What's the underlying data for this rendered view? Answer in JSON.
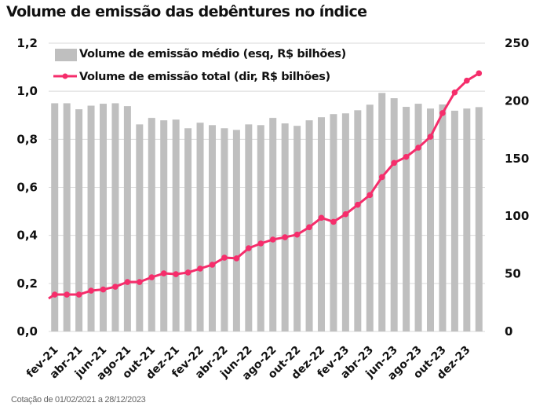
{
  "title": "Volume de emissão das debêntures no índice",
  "footnote": "Cotação de 01/02/2021 a 28/12/2023",
  "colors": {
    "bar": "#BFBFBF",
    "line": "#F52D6B",
    "grid": "#D9D9D9"
  },
  "legend": [
    {
      "label": "Volume de emissão médio (esq, R$ bilhões)",
      "type": "bar"
    },
    {
      "label": "Volume de emissão total (dir, R$ bilhões)",
      "type": "line"
    }
  ],
  "chart_data": {
    "type": "bar+line",
    "title": "Volume de emissão das debêntures no índice",
    "categories": [
      "fev-21",
      "mar-21",
      "abr-21",
      "mai-21",
      "jun-21",
      "jul-21",
      "ago-21",
      "set-21",
      "out-21",
      "nov-21",
      "dez-21",
      "jan-22",
      "fev-22",
      "mar-22",
      "abr-22",
      "mai-22",
      "jun-22",
      "jul-22",
      "ago-22",
      "set-22",
      "out-22",
      "nov-22",
      "dez-22",
      "jan-23",
      "fev-23",
      "mar-23",
      "abr-23",
      "mai-23",
      "jun-23",
      "jul-23",
      "ago-23",
      "set-23",
      "out-23",
      "nov-23",
      "dez-23",
      "jan-24"
    ],
    "x_tick_labels": [
      "fev-21",
      "abr-21",
      "jun-21",
      "ago-21",
      "out-21",
      "dez-21",
      "fev-22",
      "abr-22",
      "jun-22",
      "ago-22",
      "out-22",
      "dez-22",
      "fev-23",
      "abr-23",
      "jun-23",
      "ago-23",
      "out-23",
      "dez-23"
    ],
    "series": [
      {
        "name": "Volume de emissão médio (esq, R$ bilhões)",
        "type": "bar",
        "axis": "left",
        "values": [
          0.95,
          0.95,
          0.925,
          0.94,
          0.948,
          0.95,
          0.938,
          0.862,
          0.889,
          0.879,
          0.882,
          0.846,
          0.869,
          0.859,
          0.846,
          0.839,
          0.862,
          0.859,
          0.889,
          0.866,
          0.856,
          0.879,
          0.892,
          0.905,
          0.908,
          0.921,
          0.944,
          0.993,
          0.971,
          0.935,
          0.948,
          0.928,
          0.945,
          0.919,
          0.928,
          0.934
        ]
      },
      {
        "name": "Volume de emissão total (dir, R$ bilhões)",
        "type": "line",
        "axis": "right",
        "start_value": 28.6,
        "values": [
          32,
          32,
          32,
          35.4,
          36.4,
          38.8,
          42.9,
          42.9,
          47,
          50.4,
          49.7,
          51.1,
          54.5,
          57.9,
          64,
          63.4,
          72.2,
          76.3,
          79.7,
          81.7,
          84,
          90.4,
          98.6,
          95.1,
          101.7,
          109.9,
          118.3,
          133.9,
          146.2,
          151.4,
          159.4,
          168.9,
          189.4,
          207.3,
          217.5,
          223.9
        ]
      }
    ],
    "y_left": {
      "ylim": [
        0,
        1.2
      ],
      "ticks": [
        "0,0",
        "0,2",
        "0,4",
        "0,6",
        "0,8",
        "1,0",
        "1,2"
      ],
      "tick_values": [
        0,
        0.2,
        0.4,
        0.6,
        0.8,
        1.0,
        1.2
      ]
    },
    "y_right": {
      "ylim": [
        0,
        250
      ],
      "ticks": [
        "0",
        "50",
        "100",
        "150",
        "200",
        "250"
      ],
      "tick_values": [
        0,
        50,
        100,
        150,
        200,
        250
      ]
    },
    "xlabel": "",
    "ylabel": "",
    "grid": true,
    "legend_position": "top-left"
  }
}
